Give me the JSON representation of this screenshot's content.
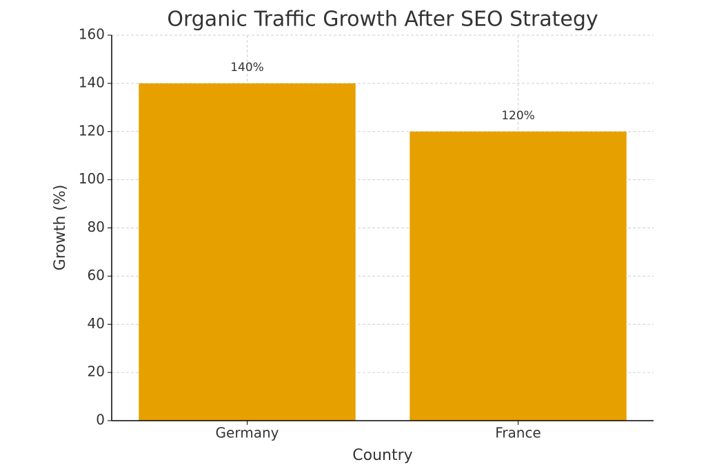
{
  "chart_data": {
    "type": "bar",
    "title": "Organic Traffic Growth After SEO Strategy",
    "xlabel": "Country",
    "ylabel": "Growth (%)",
    "categories": [
      "Germany",
      "France"
    ],
    "values": [
      140,
      120
    ],
    "value_labels": [
      "140%",
      "120%"
    ],
    "color": "#e6a000",
    "ylim": [
      0,
      160
    ],
    "yticks": [
      0,
      20,
      40,
      60,
      80,
      100,
      120,
      140,
      160
    ],
    "grid": true
  }
}
